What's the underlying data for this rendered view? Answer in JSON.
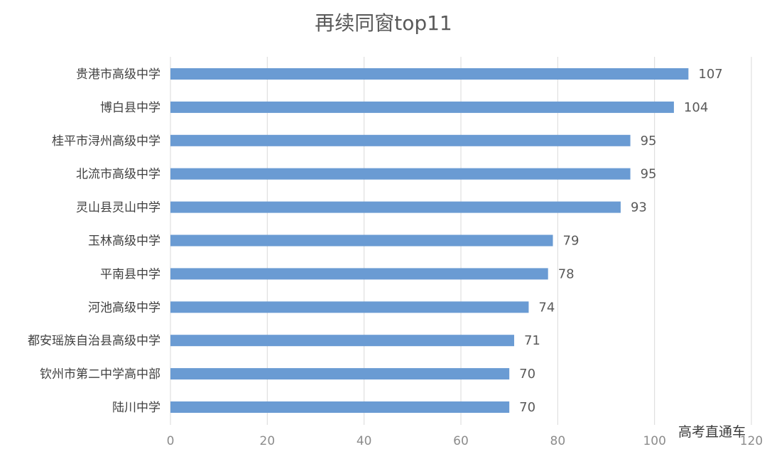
{
  "chart_data": {
    "type": "bar",
    "orientation": "horizontal",
    "title": "再续同窗top11",
    "categories": [
      "贵港市高级中学",
      "博白县中学",
      "桂平市浔州高级中学",
      "北流市高级中学",
      "灵山县灵山中学",
      "玉林高级中学",
      "平南县中学",
      "河池高级中学",
      "都安瑶族自治县高级中学",
      "钦州市第二中学高中部",
      "陆川中学"
    ],
    "values": [
      107,
      104,
      95,
      95,
      93,
      79,
      78,
      74,
      71,
      70,
      70
    ],
    "xlim": [
      0,
      120
    ],
    "xticks": [
      0,
      20,
      40,
      60,
      80,
      100,
      120
    ],
    "grid": true,
    "bar_color": "#6a9bd3"
  },
  "watermark": "高考直通车"
}
